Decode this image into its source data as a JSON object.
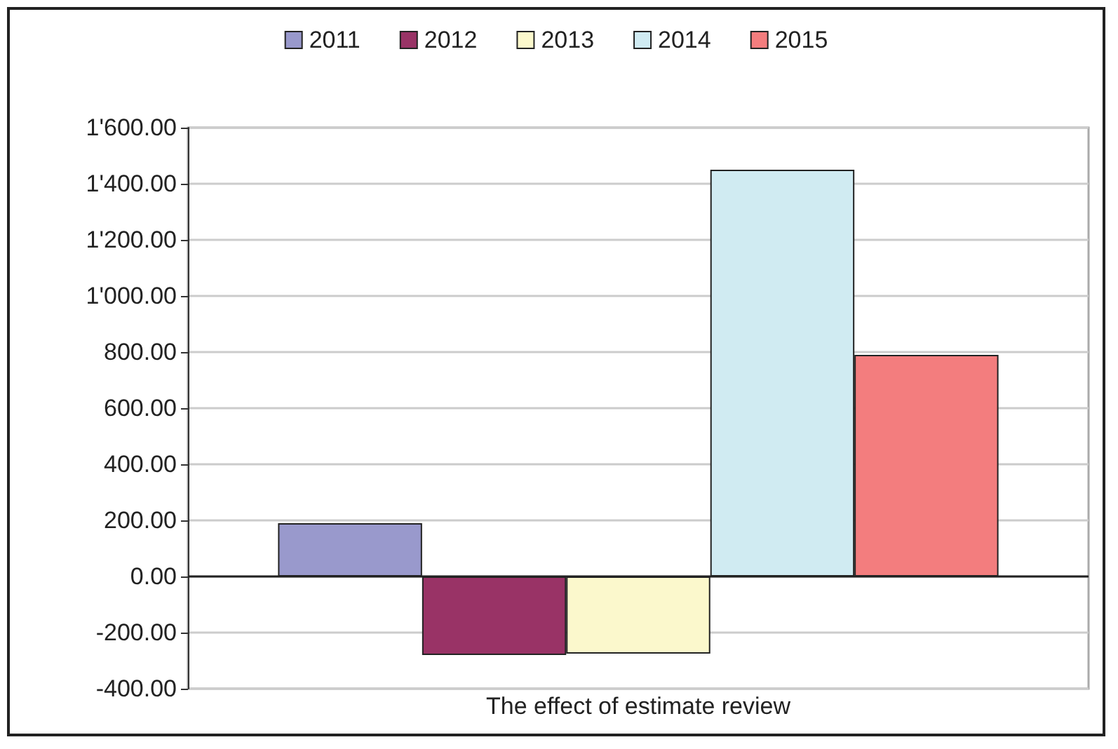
{
  "chart_data": {
    "type": "bar",
    "categories": [
      "The effect of estimate review"
    ],
    "series": [
      {
        "name": "2011",
        "color": "#9999cc",
        "values": [
          190
        ]
      },
      {
        "name": "2012",
        "color": "#993366",
        "values": [
          -280
        ]
      },
      {
        "name": "2013",
        "color": "#fbf8cc",
        "values": [
          -275
        ]
      },
      {
        "name": "2014",
        "color": "#d0ebf2",
        "values": [
          1450
        ]
      },
      {
        "name": "2015",
        "color": "#f37d7e",
        "values": [
          790
        ]
      }
    ],
    "ylim": [
      -400,
      1600
    ],
    "yticks": [
      {
        "value": -400,
        "label": "-400.00"
      },
      {
        "value": -200,
        "label": "-200.00"
      },
      {
        "value": 0,
        "label": "0.00"
      },
      {
        "value": 200,
        "label": "200.00"
      },
      {
        "value": 400,
        "label": "400.00"
      },
      {
        "value": 600,
        "label": "600.00"
      },
      {
        "value": 800,
        "label": "800.00"
      },
      {
        "value": 1000,
        "label": "1'000.00"
      },
      {
        "value": 1200,
        "label": "1'200.00"
      },
      {
        "value": 1400,
        "label": "1'400.00"
      },
      {
        "value": 1600,
        "label": "1'600.00"
      }
    ],
    "grid": "y",
    "legend": "top"
  }
}
